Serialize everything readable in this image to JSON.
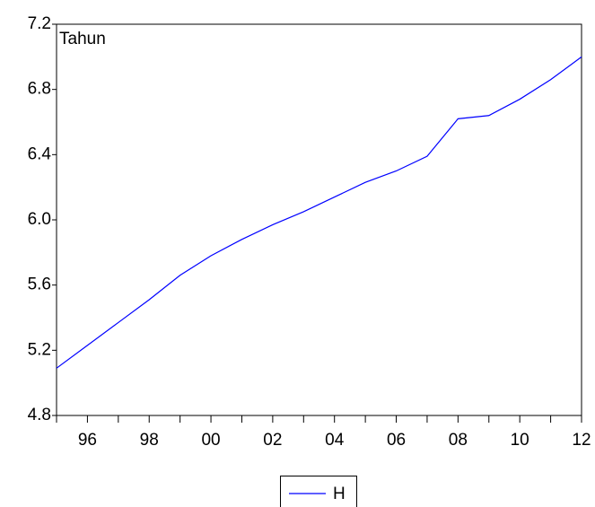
{
  "chart_data": {
    "type": "line",
    "annotation": "Tahun",
    "categories": [
      null,
      "96",
      null,
      "98",
      null,
      "00",
      null,
      "02",
      null,
      "04",
      null,
      "06",
      null,
      "08",
      null,
      "10",
      null,
      "12"
    ],
    "series": [
      {
        "name": "H",
        "color": "#0000ff",
        "values": [
          5.09,
          5.23,
          5.37,
          5.51,
          5.66,
          5.78,
          5.88,
          5.97,
          6.05,
          6.14,
          6.23,
          6.3,
          6.39,
          6.62,
          6.64,
          6.74,
          6.86,
          7.0
        ]
      }
    ],
    "ylim": [
      4.8,
      7.2
    ],
    "yticks": [
      4.8,
      5.2,
      5.6,
      {
        "value": 6,
        "label": "6.0"
      },
      6.4,
      6.8,
      7.2
    ]
  }
}
